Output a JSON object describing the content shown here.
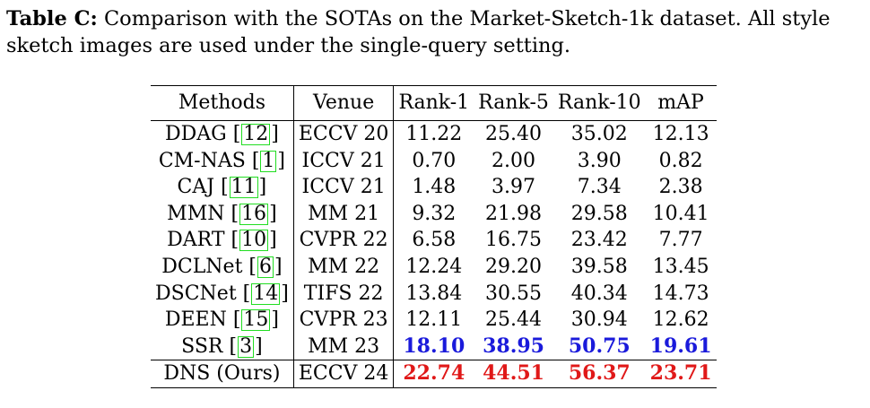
{
  "caption": {
    "label": "Table C:",
    "text": " Comparison with the SOTAs on the Market-Sketch-1k dataset. All style sketch images are used under the single-query setting."
  },
  "table": {
    "headers": [
      "Methods",
      "Venue",
      "Rank-1",
      "Rank-5",
      "Rank-10",
      "mAP"
    ],
    "rows": [
      {
        "method": "DDAG",
        "ref": "12",
        "venue": "ECCV 20",
        "r1": "11.22",
        "r5": "25.40",
        "r10": "35.02",
        "map": "12.13"
      },
      {
        "method": "CM-NAS",
        "ref": "1",
        "venue": "ICCV 21",
        "r1": "0.70",
        "r5": "2.00",
        "r10": "3.90",
        "map": "0.82"
      },
      {
        "method": "CAJ",
        "ref": "11",
        "venue": "ICCV 21",
        "r1": "1.48",
        "r5": "3.97",
        "r10": "7.34",
        "map": "2.38"
      },
      {
        "method": "MMN",
        "ref": "16",
        "venue": "MM 21",
        "r1": "9.32",
        "r5": "21.98",
        "r10": "29.58",
        "map": "10.41"
      },
      {
        "method": "DART",
        "ref": "10",
        "venue": "CVPR 22",
        "r1": "6.58",
        "r5": "16.75",
        "r10": "23.42",
        "map": "7.77"
      },
      {
        "method": "DCLNet",
        "ref": "6",
        "venue": "MM 22",
        "r1": "12.24",
        "r5": "29.20",
        "r10": "39.58",
        "map": "13.45"
      },
      {
        "method": "DSCNet",
        "ref": "14",
        "venue": "TIFS 22",
        "r1": "13.84",
        "r5": "30.55",
        "r10": "40.34",
        "map": "14.73"
      },
      {
        "method": "DEEN",
        "ref": "15",
        "venue": "CVPR 23",
        "r1": "12.11",
        "r5": "25.44",
        "r10": "30.94",
        "map": "12.62"
      },
      {
        "method": "SSR",
        "ref": "3",
        "venue": "MM 23",
        "r1": "18.10",
        "r5": "38.95",
        "r10": "50.75",
        "map": "19.61"
      }
    ],
    "ours": {
      "method": "DNS (Ours)",
      "venue": "ECCV 24",
      "r1": "22.74",
      "r5": "44.51",
      "r10": "56.37",
      "map": "23.71"
    }
  },
  "colors": {
    "best": "#e01818",
    "second": "#1a1adb",
    "citation_box": "#22dd22"
  }
}
